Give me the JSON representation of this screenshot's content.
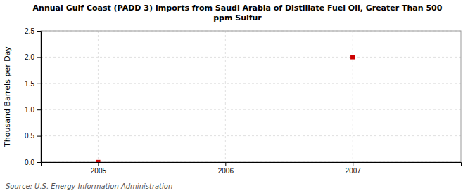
{
  "chart_data": {
    "type": "scatter",
    "title": "Annual Gulf Coast (PADD 3) Imports from Saudi Arabia of Distillate Fuel Oil, Greater Than 500\nppm Sulfur",
    "y_label": "Thousand Barrels per Day",
    "annotations": [
      "Source: U.S. Energy Information Administration"
    ],
    "x": [
      2005,
      2007
    ],
    "values": [
      0.0,
      2.0
    ],
    "color": "#cc0000",
    "marker": "square",
    "xlim": [
      2004.55,
      2007.85
    ],
    "ylim": [
      0.0,
      2.5
    ],
    "xticks": [
      2005,
      2006,
      2007
    ],
    "yticks": [
      {
        "value": 0.0,
        "label": "0.0"
      },
      0.5,
      {
        "value": 1.0,
        "label": "1.0"
      },
      1.5,
      {
        "value": 2.0,
        "label": "2.0"
      },
      2.5
    ],
    "grid": true
  }
}
